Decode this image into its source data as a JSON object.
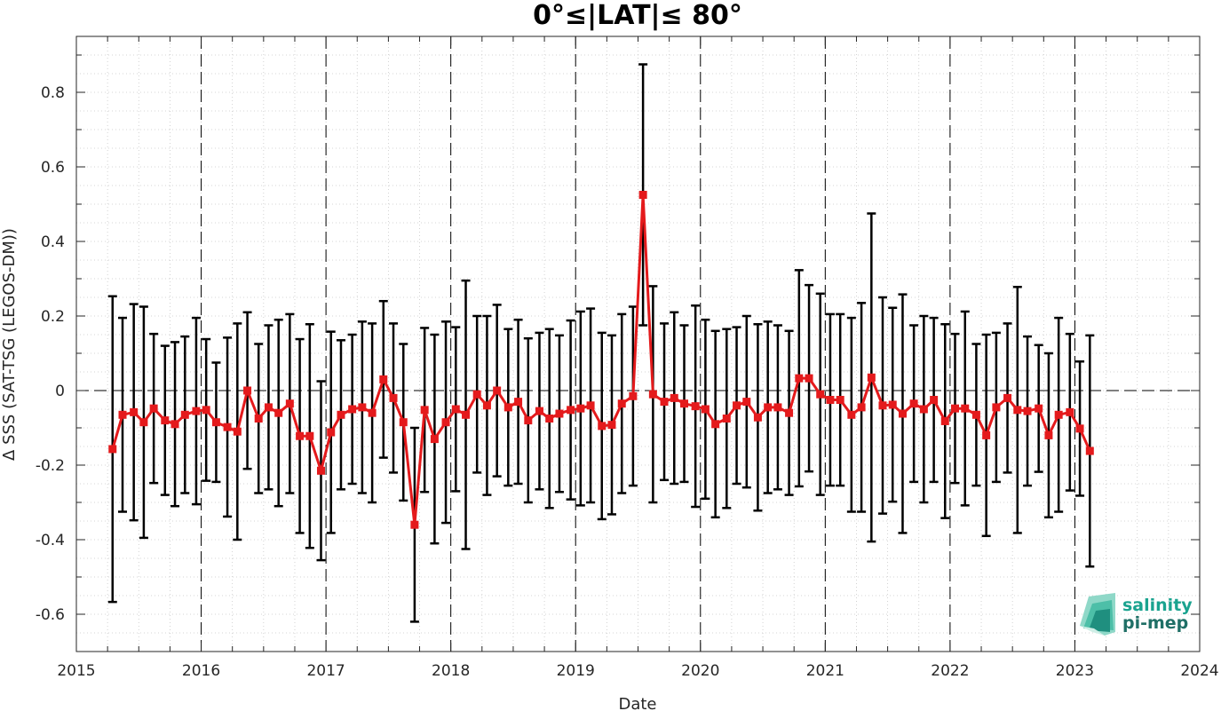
{
  "chart_data": {
    "type": "line",
    "title": "0°≤|LAT|≤ 80°",
    "xlabel": "Date",
    "ylabel": "Δ SSS (SAT-TSG (LEGOS-DM))",
    "xlim": [
      2015,
      2024
    ],
    "ylim": [
      -0.7,
      0.95
    ],
    "xticks": [
      2015,
      2016,
      2017,
      2018,
      2019,
      2020,
      2021,
      2022,
      2023,
      2024
    ],
    "xtick_labels": [
      "2015",
      "2016",
      "2017",
      "2018",
      "2019",
      "2020",
      "2021",
      "2022",
      "2023",
      "2024"
    ],
    "yticks": [
      -0.6,
      -0.4,
      -0.2,
      0,
      0.2,
      0.4,
      0.6,
      0.8
    ],
    "ytick_labels": [
      "-0.6",
      "-0.4",
      "-0.2",
      "0",
      "0.2",
      "0.4",
      "0.6",
      "0.8"
    ],
    "grid": "minor dotted, yearly dashed vertical lines, dashed zero line",
    "series": [
      {
        "color": "#e41a1c",
        "errorbar_color": "#000000",
        "marker": "square",
        "x": [
          2015.29,
          2015.37,
          2015.46,
          2015.54,
          2015.62,
          2015.71,
          2015.79,
          2015.87,
          2015.96,
          2016.04,
          2016.12,
          2016.21,
          2016.29,
          2016.37,
          2016.46,
          2016.54,
          2016.62,
          2016.71,
          2016.79,
          2016.87,
          2016.96,
          2017.04,
          2017.12,
          2017.21,
          2017.29,
          2017.37,
          2017.46,
          2017.54,
          2017.62,
          2017.71,
          2017.79,
          2017.87,
          2017.96,
          2018.04,
          2018.12,
          2018.21,
          2018.29,
          2018.37,
          2018.46,
          2018.54,
          2018.62,
          2018.71,
          2018.79,
          2018.87,
          2018.96,
          2019.04,
          2019.12,
          2019.21,
          2019.29,
          2019.37,
          2019.46,
          2019.54,
          2019.62,
          2019.71,
          2019.79,
          2019.87,
          2019.96,
          2020.04,
          2020.12,
          2020.21,
          2020.29,
          2020.37,
          2020.46,
          2020.54,
          2020.62,
          2020.71,
          2020.79,
          2020.87,
          2020.96,
          2021.04,
          2021.12,
          2021.21,
          2021.29,
          2021.37,
          2021.46,
          2021.54,
          2021.62,
          2021.71,
          2021.79,
          2021.87,
          2021.96,
          2022.04,
          2022.12,
          2022.21,
          2022.29,
          2022.37,
          2022.46,
          2022.54,
          2022.62,
          2022.71,
          2022.79,
          2022.87,
          2022.96,
          2023.04,
          2023.12
        ],
        "y": [
          -0.157,
          -0.065,
          -0.058,
          -0.085,
          -0.048,
          -0.08,
          -0.09,
          -0.065,
          -0.055,
          -0.052,
          -0.085,
          -0.098,
          -0.11,
          0.0,
          -0.075,
          -0.045,
          -0.06,
          -0.035,
          -0.122,
          -0.122,
          -0.215,
          -0.112,
          -0.065,
          -0.05,
          -0.045,
          -0.06,
          0.03,
          -0.02,
          -0.085,
          -0.36,
          -0.052,
          -0.13,
          -0.085,
          -0.05,
          -0.065,
          -0.01,
          -0.04,
          0.0,
          -0.045,
          -0.03,
          -0.08,
          -0.055,
          -0.075,
          -0.062,
          -0.052,
          -0.048,
          -0.04,
          -0.095,
          -0.092,
          -0.035,
          -0.015,
          0.525,
          -0.01,
          -0.03,
          -0.02,
          -0.035,
          -0.042,
          -0.05,
          -0.09,
          -0.075,
          -0.04,
          -0.03,
          -0.072,
          -0.045,
          -0.045,
          -0.06,
          0.033,
          0.033,
          -0.01,
          -0.025,
          -0.025,
          -0.065,
          -0.045,
          0.035,
          -0.04,
          -0.038,
          -0.062,
          -0.035,
          -0.05,
          -0.025,
          -0.082,
          -0.048,
          -0.048,
          -0.065,
          -0.12,
          -0.045,
          -0.02,
          -0.052,
          -0.055,
          -0.048,
          -0.12,
          -0.065,
          -0.058,
          -0.102,
          -0.162
        ],
        "yerr": [
          0.41,
          0.26,
          0.29,
          0.31,
          0.2,
          0.2,
          0.22,
          0.21,
          0.25,
          0.19,
          0.16,
          0.24,
          0.29,
          0.21,
          0.2,
          0.22,
          0.25,
          0.24,
          0.26,
          0.3,
          0.24,
          0.27,
          0.2,
          0.2,
          0.23,
          0.24,
          0.21,
          0.2,
          0.21,
          0.26,
          0.22,
          0.28,
          0.27,
          0.22,
          0.36,
          0.21,
          0.24,
          0.23,
          0.21,
          0.22,
          0.22,
          0.21,
          0.24,
          0.21,
          0.24,
          0.26,
          0.26,
          0.25,
          0.24,
          0.24,
          0.24,
          0.35,
          0.29,
          0.21,
          0.23,
          0.21,
          0.27,
          0.24,
          0.25,
          0.24,
          0.21,
          0.23,
          0.25,
          0.23,
          0.22,
          0.22,
          0.29,
          0.25,
          0.27,
          0.23,
          0.23,
          0.26,
          0.28,
          0.44,
          0.29,
          0.26,
          0.32,
          0.21,
          0.25,
          0.22,
          0.26,
          0.2,
          0.26,
          0.19,
          0.27,
          0.2,
          0.2,
          0.33,
          0.2,
          0.17,
          0.22,
          0.26,
          0.21,
          0.18,
          0.31
        ]
      }
    ]
  },
  "logo": {
    "line1": "salinity",
    "line2": "pi-mep",
    "color1": "#1aa38f",
    "color2": "#1f6f66"
  }
}
